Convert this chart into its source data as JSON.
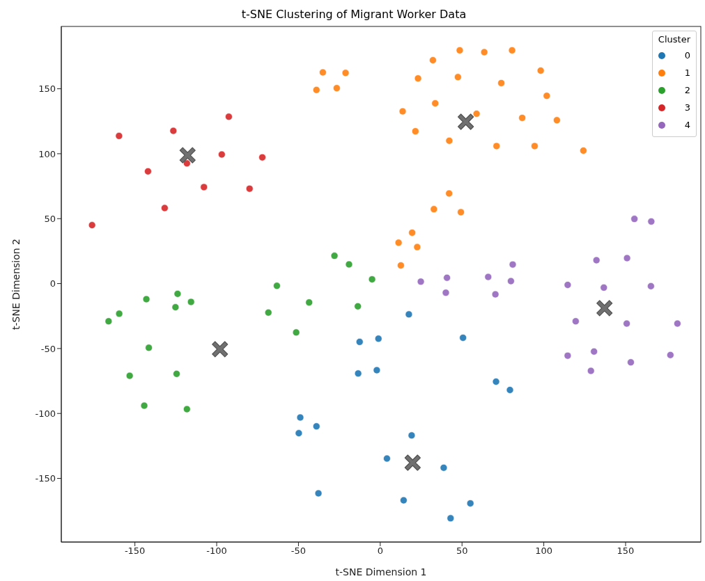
{
  "chart_data": {
    "type": "scatter",
    "title": "t-SNE Clustering of Migrant Worker Data",
    "xlabel": "t-SNE Dimension 1",
    "ylabel": "t-SNE Dimension 2",
    "legend_title": "Cluster",
    "legend": "top right",
    "grid": false,
    "marker": "circle",
    "xlim": [
      -195,
      196
    ],
    "ylim": [
      -199,
      198
    ],
    "xticks": [
      -150,
      -100,
      -50,
      0,
      50,
      100,
      150
    ],
    "yticks": [
      -150,
      -100,
      -50,
      0,
      50,
      100,
      150
    ],
    "series": [
      {
        "name": "0",
        "color": "#1f77b4",
        "x": [
          -12.6,
          -1.1,
          -13.5,
          -2.1,
          -48.9,
          -39.0,
          -49.8,
          -37.8,
          17.5,
          50.6,
          70.8,
          79.3,
          19.2,
          4.1,
          38.8,
          14.3,
          55.1,
          43.0
        ],
        "values": [
          -44.9,
          -42.4,
          -69.2,
          -66.7,
          -103.1,
          -109.9,
          -115.2,
          -161.5,
          -23.7,
          -41.7,
          -75.5,
          -81.9,
          -116.9,
          -134.7,
          -141.8,
          -166.9,
          -169.2,
          -180.7
        ]
      },
      {
        "name": "1",
        "color": "#ff7f0e",
        "x": [
          -35.1,
          -21.2,
          -39.0,
          -26.6,
          48.6,
          63.6,
          80.6,
          32.2,
          98.1,
          23.1,
          47.5,
          74.0,
          101.8,
          33.6,
          13.7,
          58.9,
          86.8,
          108.0,
          21.5,
          42.2,
          71.1,
          94.4,
          124.2,
          42.1,
          32.8,
          49.3,
          19.5,
          11.2,
          22.6,
          12.6
        ],
        "values": [
          162.6,
          162.2,
          149.1,
          150.5,
          179.6,
          178.2,
          179.6,
          172.0,
          164.0,
          158.0,
          159.0,
          154.4,
          144.6,
          138.8,
          132.6,
          130.8,
          127.6,
          125.8,
          117.3,
          110.0,
          105.9,
          105.9,
          102.4,
          69.4,
          57.3,
          55.0,
          39.2,
          31.5,
          28.1,
          14.0
        ]
      },
      {
        "name": "2",
        "color": "#2ca02c",
        "x": [
          -28.0,
          -19.1,
          -5.0,
          -63.2,
          -43.5,
          -13.7,
          -68.4,
          -51.4,
          -143.0,
          -123.9,
          -115.7,
          -125.2,
          -159.6,
          -166.1,
          -141.5,
          -153.2,
          -124.5,
          -144.3,
          -118.2
        ],
        "values": [
          21.4,
          14.8,
          3.3,
          -1.7,
          -14.5,
          -17.5,
          -22.3,
          -37.6,
          -12.0,
          -7.9,
          -14.1,
          -18.2,
          -23.2,
          -29.0,
          -49.4,
          -71.0,
          -69.5,
          -94.0,
          -96.7
        ]
      },
      {
        "name": "3",
        "color": "#d62728",
        "x": [
          -176.2,
          -159.7,
          -142.0,
          -131.8,
          -126.5,
          -118.2,
          -107.8,
          -96.9,
          -92.6,
          -79.9,
          -72.1
        ],
        "values": [
          45.0,
          113.7,
          86.4,
          58.2,
          117.6,
          92.6,
          74.3,
          99.4,
          128.5,
          73.1,
          97.2
        ]
      },
      {
        "name": "4",
        "color": "#9467bd",
        "x": [
          155.4,
          165.7,
          132.2,
          150.9,
          81.0,
          24.8,
          40.8,
          66.0,
          79.9,
          40.1,
          70.4,
          114.6,
          136.7,
          165.5,
          119.5,
          150.7,
          181.7,
          114.6,
          130.7,
          177.4,
          153.2,
          128.8
        ],
        "values": [
          49.8,
          47.8,
          18.0,
          19.6,
          14.7,
          1.5,
          4.5,
          5.1,
          1.9,
          -7.0,
          -8.3,
          -1.0,
          -3.1,
          -2.0,
          -29.0,
          -30.8,
          -30.8,
          -55.5,
          -52.3,
          -55.0,
          -60.6,
          -67.2
        ]
      },
      {
        "color": "#707070",
        "marker": "cross",
        "x": [
          -117.8,
          52.3,
          -98.0,
          19.8,
          137.1
        ],
        "values": [
          98.8,
          124.6,
          -50.5,
          -137.9,
          -18.9
        ]
      }
    ]
  }
}
